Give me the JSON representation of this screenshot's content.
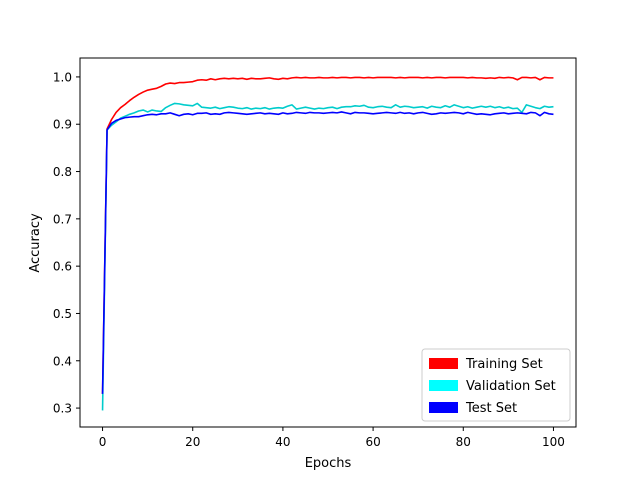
{
  "chart_data": {
    "type": "line",
    "title": "",
    "xlabel": "Epochs",
    "ylabel": "Accuracy",
    "xlim": [
      -5,
      105
    ],
    "ylim": [
      0.26,
      1.04
    ],
    "xticks": [
      0,
      20,
      40,
      60,
      80,
      100
    ],
    "yticks": [
      0.3,
      0.4,
      0.5,
      0.6,
      0.7,
      0.8,
      0.9,
      1.0
    ],
    "xtick_labels": [
      "0",
      "20",
      "40",
      "60",
      "80",
      "100"
    ],
    "ytick_labels": [
      "0.3",
      "0.4",
      "0.5",
      "0.6",
      "0.7",
      "0.8",
      "0.9",
      "1.0"
    ],
    "grid": false,
    "legend_position": "lower-right",
    "x": [
      0,
      1,
      2,
      3,
      4,
      5,
      6,
      7,
      8,
      9,
      10,
      11,
      12,
      13,
      14,
      15,
      16,
      17,
      18,
      19,
      20,
      21,
      22,
      23,
      24,
      25,
      26,
      27,
      28,
      29,
      30,
      31,
      32,
      33,
      34,
      35,
      36,
      37,
      38,
      39,
      40,
      41,
      42,
      43,
      44,
      45,
      46,
      47,
      48,
      49,
      50,
      51,
      52,
      53,
      54,
      55,
      56,
      57,
      58,
      59,
      60,
      61,
      62,
      63,
      64,
      65,
      66,
      67,
      68,
      69,
      70,
      71,
      72,
      73,
      74,
      75,
      76,
      77,
      78,
      79,
      80,
      81,
      82,
      83,
      84,
      85,
      86,
      87,
      88,
      89,
      90,
      91,
      92,
      93,
      94,
      95,
      96,
      97,
      98,
      99,
      100
    ],
    "series": [
      {
        "name": "Training Set",
        "color": "#ff0000",
        "values": [
          0.33,
          0.89,
          0.91,
          0.925,
          0.935,
          0.942,
          0.95,
          0.957,
          0.963,
          0.968,
          0.972,
          0.974,
          0.976,
          0.98,
          0.985,
          0.987,
          0.986,
          0.988,
          0.988,
          0.989,
          0.99,
          0.993,
          0.994,
          0.993,
          0.996,
          0.994,
          0.996,
          0.997,
          0.996,
          0.997,
          0.996,
          0.997,
          0.995,
          0.997,
          0.996,
          0.996,
          0.997,
          0.998,
          0.996,
          0.995,
          0.997,
          0.996,
          0.998,
          0.999,
          0.998,
          0.999,
          0.998,
          0.998,
          0.999,
          0.998,
          0.998,
          0.999,
          0.998,
          0.999,
          0.999,
          0.998,
          0.999,
          0.999,
          0.998,
          0.999,
          0.998,
          0.999,
          0.999,
          0.999,
          0.999,
          0.998,
          0.999,
          0.998,
          0.999,
          0.999,
          0.999,
          0.998,
          0.999,
          0.998,
          0.999,
          0.999,
          0.998,
          0.999,
          0.999,
          0.999,
          0.999,
          0.998,
          0.999,
          0.998,
          0.998,
          0.997,
          0.998,
          0.997,
          0.999,
          0.998,
          0.999,
          0.998,
          0.994,
          0.999,
          0.999,
          0.998,
          0.999,
          0.994,
          0.999,
          0.998,
          0.998
        ]
      },
      {
        "name": "Validation Set",
        "color": "#00cccc",
        "values": [
          0.295,
          0.888,
          0.898,
          0.905,
          0.913,
          0.917,
          0.921,
          0.924,
          0.928,
          0.93,
          0.926,
          0.93,
          0.928,
          0.927,
          0.935,
          0.94,
          0.944,
          0.943,
          0.941,
          0.94,
          0.939,
          0.944,
          0.936,
          0.935,
          0.934,
          0.936,
          0.933,
          0.935,
          0.937,
          0.936,
          0.934,
          0.933,
          0.935,
          0.932,
          0.934,
          0.933,
          0.935,
          0.932,
          0.934,
          0.935,
          0.934,
          0.938,
          0.941,
          0.932,
          0.934,
          0.936,
          0.934,
          0.932,
          0.934,
          0.933,
          0.935,
          0.936,
          0.933,
          0.936,
          0.937,
          0.937,
          0.939,
          0.938,
          0.94,
          0.936,
          0.935,
          0.937,
          0.938,
          0.936,
          0.935,
          0.941,
          0.936,
          0.938,
          0.937,
          0.935,
          0.936,
          0.937,
          0.934,
          0.938,
          0.936,
          0.935,
          0.939,
          0.936,
          0.941,
          0.938,
          0.935,
          0.937,
          0.934,
          0.936,
          0.938,
          0.936,
          0.938,
          0.935,
          0.937,
          0.934,
          0.936,
          0.933,
          0.934,
          0.925,
          0.941,
          0.938,
          0.935,
          0.933,
          0.938,
          0.936,
          0.937
        ]
      },
      {
        "name": "Test Set",
        "color": "#0000ff",
        "values": [
          0.33,
          0.888,
          0.902,
          0.908,
          0.911,
          0.914,
          0.915,
          0.916,
          0.916,
          0.918,
          0.92,
          0.921,
          0.92,
          0.922,
          0.922,
          0.924,
          0.921,
          0.918,
          0.921,
          0.922,
          0.92,
          0.923,
          0.923,
          0.924,
          0.921,
          0.922,
          0.921,
          0.924,
          0.925,
          0.924,
          0.923,
          0.922,
          0.921,
          0.922,
          0.923,
          0.924,
          0.922,
          0.923,
          0.922,
          0.921,
          0.924,
          0.922,
          0.923,
          0.925,
          0.924,
          0.923,
          0.925,
          0.924,
          0.924,
          0.923,
          0.924,
          0.925,
          0.924,
          0.926,
          0.924,
          0.922,
          0.925,
          0.924,
          0.924,
          0.923,
          0.922,
          0.923,
          0.924,
          0.925,
          0.924,
          0.923,
          0.925,
          0.923,
          0.924,
          0.922,
          0.924,
          0.925,
          0.923,
          0.921,
          0.922,
          0.924,
          0.923,
          0.924,
          0.925,
          0.924,
          0.922,
          0.925,
          0.923,
          0.921,
          0.922,
          0.921,
          0.92,
          0.922,
          0.923,
          0.924,
          0.922,
          0.923,
          0.924,
          0.923,
          0.922,
          0.925,
          0.924,
          0.918,
          0.925,
          0.922,
          0.921
        ]
      }
    ]
  }
}
